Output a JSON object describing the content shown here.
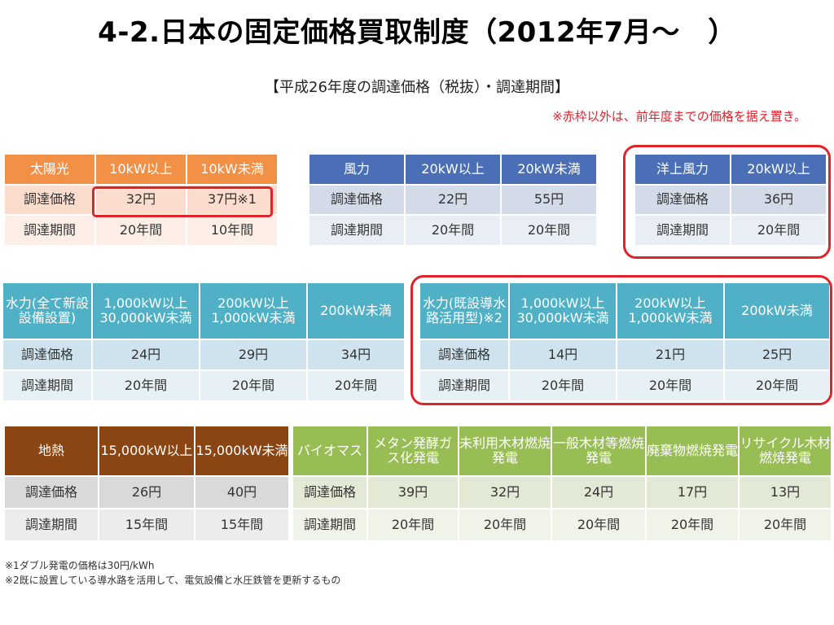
{
  "title": "4-2.日本の固定価格買取制度（2012年7月～　）",
  "subtitle": "【平成26年度の調達価格（税抜）・調達期間】",
  "note": "※赤枠以外は、前年度までの価格を据え置き。",
  "colors": {
    "solar_header": "#f29046",
    "solar_row1": "#fbdccd",
    "solar_row2": "#fdefe7",
    "wind_header": "#4a6fb6",
    "wind_row1": "#d3dbe9",
    "wind_row2": "#e9eef5",
    "hydro_header": "#4fb0c6",
    "hydro_row1": "#cfe3ee",
    "hydro_row2": "#e7f0f5",
    "geo_header": "#8a4513",
    "geo_row1": "#d9d9d9",
    "geo_row2": "#ececec",
    "bio_header": "#98bd55",
    "bio_row1": "#e2e9d4",
    "bio_row2": "#f0f4e8",
    "highlight": "#e0232b"
  },
  "solar": {
    "headers": [
      "太陽光",
      "10kW以上",
      "10kW未満"
    ],
    "rows": [
      [
        "調達価格",
        "32円",
        "37円※1"
      ],
      [
        "調達期間",
        "20年間",
        "10年間"
      ]
    ]
  },
  "wind": {
    "headers": [
      "風力",
      "20kW以上",
      "20kW未満"
    ],
    "rows": [
      [
        "調達価格",
        "22円",
        "55円"
      ],
      [
        "調達期間",
        "20年間",
        "20年間"
      ]
    ]
  },
  "offshore": {
    "headers": [
      "洋上風力",
      "20kW以上"
    ],
    "rows": [
      [
        "調達価格",
        "36円"
      ],
      [
        "調達期間",
        "20年間"
      ]
    ]
  },
  "hydro_new": {
    "headers": [
      "水力(全て新設設備設置)",
      "1,000kW以上30,000kW未満",
      "200kW以上1,000kW未満",
      "200kW未満"
    ],
    "rows": [
      [
        "調達価格",
        "24円",
        "29円",
        "34円"
      ],
      [
        "調達期間",
        "20年間",
        "20年間",
        "20年間"
      ]
    ]
  },
  "hydro_exist": {
    "headers": [
      "水力(既設導水路活用型)※2",
      "1,000kW以上30,000kW未満",
      "200kW以上1,000kW未満",
      "200kW未満"
    ],
    "rows": [
      [
        "調達価格",
        "14円",
        "21円",
        "25円"
      ],
      [
        "調達期間",
        "20年間",
        "20年間",
        "20年間"
      ]
    ]
  },
  "geothermal": {
    "headers": [
      "地熱",
      "15,000kW以上",
      "15,000kW未満"
    ],
    "rows": [
      [
        "調達価格",
        "26円",
        "40円"
      ],
      [
        "調達期間",
        "15年間",
        "15年間"
      ]
    ]
  },
  "biomass": {
    "headers": [
      "バイオマス",
      "メタン発酵ガス化発電",
      "未利用木材燃焼発電",
      "一般木材等燃焼発電",
      "廃棄物燃焼発電",
      "リサイクル木材燃焼発電"
    ],
    "rows": [
      [
        "調達価格",
        "39円",
        "32円",
        "24円",
        "17円",
        "13円"
      ],
      [
        "調達期間",
        "20年間",
        "20年間",
        "20年間",
        "20年間",
        "20年間"
      ]
    ]
  },
  "footnotes": [
    "※1ダブル発電の価格は30円/kWh",
    "※2既に設置している導水路を活用して、電気設備と水圧鉄管を更新するもの"
  ]
}
